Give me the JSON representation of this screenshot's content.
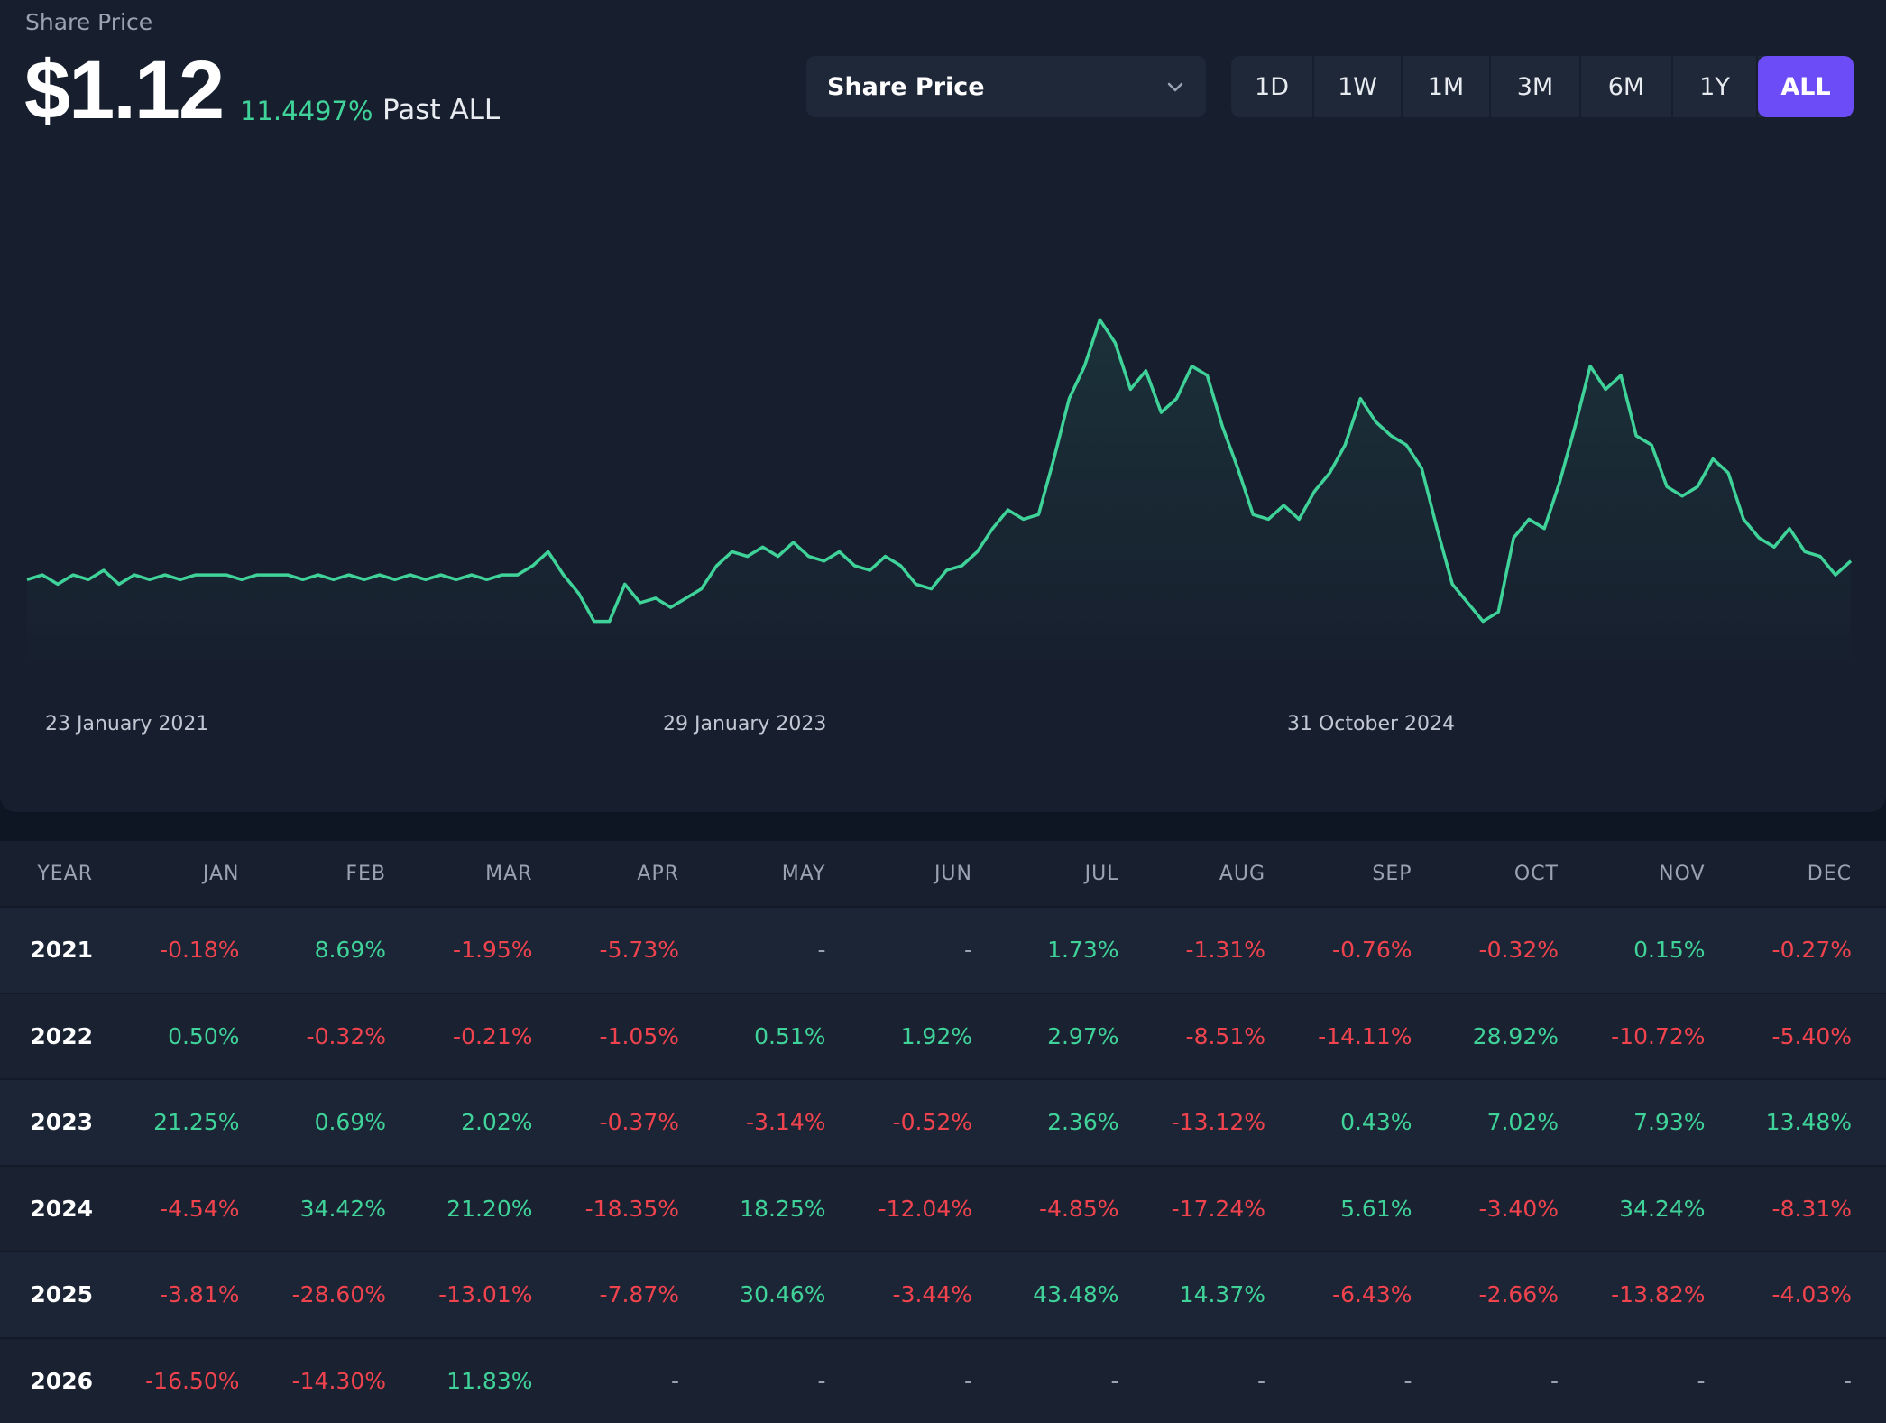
{
  "header": {
    "label": "Share Price",
    "price": "$1.12",
    "change": "11.4497%",
    "period": "Past ALL"
  },
  "metric_select": {
    "value": "Share Price",
    "icon": "chevron-down-icon"
  },
  "ranges": [
    "1D",
    "1W",
    "1M",
    "3M",
    "6M",
    "1Y",
    "ALL"
  ],
  "active_range": "ALL",
  "colors": {
    "accent": "#6b4cf6",
    "line": "#3fd39a",
    "positive": "#3fd39a",
    "negative": "#f0434e",
    "background": "#171f2e"
  },
  "chart_data": {
    "type": "line",
    "x_tick_labels": [
      "23 January 2021",
      "29 January 2023",
      "31 October 2024"
    ],
    "grid": false,
    "legend": "none",
    "series": [
      {
        "values": [
          0.49,
          0.5,
          0.48,
          0.5,
          0.49,
          0.51,
          0.48,
          0.5,
          0.49,
          0.5,
          0.49,
          0.5,
          0.5,
          0.5,
          0.49,
          0.5,
          0.5,
          0.5,
          0.49,
          0.5,
          0.49,
          0.5,
          0.49,
          0.5,
          0.49,
          0.5,
          0.49,
          0.5,
          0.49,
          0.5,
          0.49,
          0.5,
          0.5,
          0.52,
          0.55,
          0.5,
          0.46,
          0.4,
          0.4,
          0.48,
          0.44,
          0.45,
          0.43,
          0.45,
          0.47,
          0.52,
          0.55,
          0.54,
          0.56,
          0.54,
          0.57,
          0.54,
          0.53,
          0.55,
          0.52,
          0.51,
          0.54,
          0.52,
          0.48,
          0.47,
          0.51,
          0.52,
          0.55,
          0.6,
          0.64,
          0.62,
          0.63,
          0.75,
          0.88,
          0.95,
          1.05,
          1.0,
          0.9,
          0.94,
          0.85,
          0.88,
          0.95,
          0.93,
          0.82,
          0.73,
          0.63,
          0.62,
          0.65,
          0.62,
          0.68,
          0.72,
          0.78,
          0.88,
          0.83,
          0.8,
          0.78,
          0.73,
          0.6,
          0.48,
          0.44,
          0.4,
          0.42,
          0.58,
          0.62,
          0.6,
          0.7,
          0.82,
          0.95,
          0.9,
          0.93,
          0.8,
          0.78,
          0.69,
          0.67,
          0.69,
          0.75,
          0.72,
          0.62,
          0.58,
          0.56,
          0.6,
          0.55,
          0.54,
          0.5,
          0.53
        ]
      }
    ]
  },
  "returns_table": {
    "headers": [
      "YEAR",
      "JAN",
      "FEB",
      "MAR",
      "APR",
      "MAY",
      "JUN",
      "JUL",
      "AUG",
      "SEP",
      "OCT",
      "NOV",
      "DEC"
    ],
    "rows": [
      {
        "year": "2021",
        "values": [
          "-0.18%",
          "8.69%",
          "-1.95%",
          "-5.73%",
          "-",
          "-",
          "1.73%",
          "-1.31%",
          "-0.76%",
          "-0.32%",
          "0.15%",
          "-0.27%"
        ]
      },
      {
        "year": "2022",
        "values": [
          "0.50%",
          "-0.32%",
          "-0.21%",
          "-1.05%",
          "0.51%",
          "1.92%",
          "2.97%",
          "-8.51%",
          "-14.11%",
          "28.92%",
          "-10.72%",
          "-5.40%"
        ]
      },
      {
        "year": "2023",
        "values": [
          "21.25%",
          "0.69%",
          "2.02%",
          "-0.37%",
          "-3.14%",
          "-0.52%",
          "2.36%",
          "-13.12%",
          "0.43%",
          "7.02%",
          "7.93%",
          "13.48%"
        ]
      },
      {
        "year": "2024",
        "values": [
          "-4.54%",
          "34.42%",
          "21.20%",
          "-18.35%",
          "18.25%",
          "-12.04%",
          "-4.85%",
          "-17.24%",
          "5.61%",
          "-3.40%",
          "34.24%",
          "-8.31%"
        ]
      },
      {
        "year": "2025",
        "values": [
          "-3.81%",
          "-28.60%",
          "-13.01%",
          "-7.87%",
          "30.46%",
          "-3.44%",
          "43.48%",
          "14.37%",
          "-6.43%",
          "-2.66%",
          "-13.82%",
          "-4.03%"
        ]
      },
      {
        "year": "2026",
        "values": [
          "-16.50%",
          "-14.30%",
          "11.83%",
          "-",
          "-",
          "-",
          "-",
          "-",
          "-",
          "-",
          "-",
          "-"
        ]
      }
    ]
  }
}
